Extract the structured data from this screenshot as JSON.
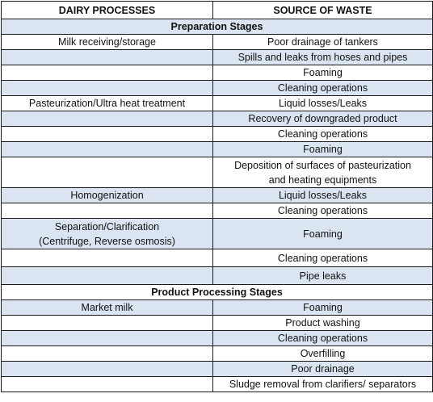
{
  "table": {
    "headers": [
      "DAIRY PROCESSES",
      "SOURCE OF WASTE"
    ],
    "preparation_title": "Preparation Stages",
    "product_title": "Product Processing Stages",
    "rows": {
      "milk_receiving": "Milk receiving/storage",
      "poor_drainage_tankers": "Poor drainage of tankers",
      "spills_leaks": "Spills and leaks from hoses and pipes",
      "foaming_1": "Foaming",
      "cleaning_1": "Cleaning operations",
      "pasteurization": "Pasteurization/Ultra heat treatment",
      "liquid_losses_1": "Liquid losses/Leaks",
      "recovery": "Recovery of downgraded product",
      "cleaning_2": "Cleaning operations",
      "foaming_2": "Foaming",
      "deposition_1": "Deposition of surfaces of pasteurization",
      "deposition_2": "and heating equipments",
      "homogenization": "Homogenization",
      "liquid_losses_2": "Liquid losses/Leaks",
      "cleaning_3": "Cleaning operations",
      "separation_1": "Separation/Clarification",
      "separation_2": "(Centrifuge, Reverse osmosis)",
      "foaming_3": "Foaming",
      "cleaning_4": "Cleaning operations",
      "pipe_leaks": "Pipe leaks",
      "market_milk": "Market milk",
      "foaming_4": "Foaming",
      "product_washing": "Product washing",
      "cleaning_5": "Cleaning operations",
      "overfilling": "Overfilling",
      "poor_drainage": "Poor drainage",
      "sludge": "Sludge removal from clarifiers/ separators"
    }
  }
}
